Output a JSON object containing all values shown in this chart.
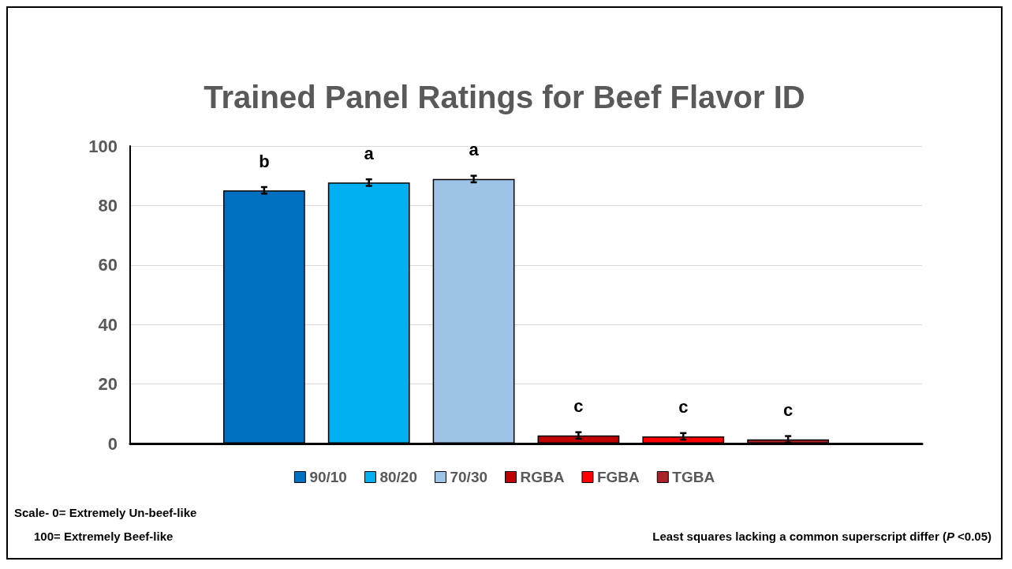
{
  "chart_data": {
    "type": "bar",
    "title": "Trained Panel Ratings for Beef Flavor ID",
    "categories": [
      null
    ],
    "series": [
      {
        "name": "90/10",
        "color": "#0070c0",
        "values": [
          85.1
        ],
        "errors": [
          1.1
        ],
        "value_labels": [
          "b"
        ]
      },
      {
        "name": "80/20",
        "color": "#00b0f0",
        "values": [
          87.7
        ],
        "errors": [
          1.1
        ],
        "value_labels": [
          "a"
        ]
      },
      {
        "name": "70/30",
        "color": "#9dc3e6",
        "values": [
          88.9
        ],
        "errors": [
          1.1
        ],
        "value_labels": [
          "a"
        ]
      },
      {
        "name": "RGBA",
        "color": "#c00000",
        "values": [
          2.7
        ],
        "errors": [
          1.1
        ],
        "value_labels": [
          "c"
        ]
      },
      {
        "name": "FGBA",
        "color": "#ff0000",
        "values": [
          2.4
        ],
        "errors": [
          1.1
        ],
        "value_labels": [
          "c"
        ]
      },
      {
        "name": "TGBA",
        "color": "#a8232a",
        "values": [
          1.4
        ],
        "errors": [
          1.1
        ],
        "value_labels": [
          "c"
        ]
      }
    ],
    "ylim": [
      0,
      100
    ],
    "yticks": [
      0,
      20,
      40,
      60,
      80,
      100
    ],
    "grid": "y",
    "legend": "bottom",
    "annotations": [
      "Scale- 0= Extremely Un-beef-like",
      "100= Extremely Beef-like",
      "Least squares lacking a common superscript differ (P <0.05)"
    ]
  }
}
